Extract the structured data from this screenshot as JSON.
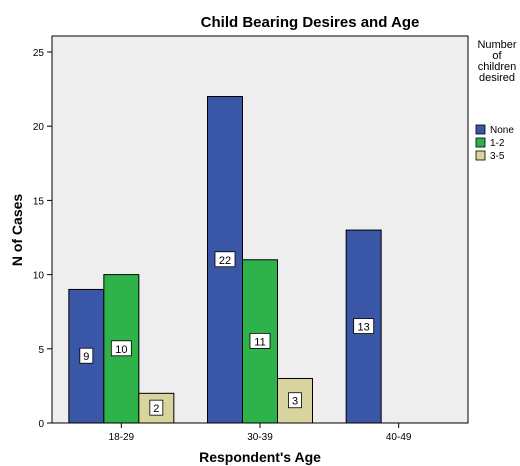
{
  "chart_data": {
    "type": "bar",
    "title": "Child Bearing Desires and Age",
    "xlabel": "Respondent's Age",
    "ylabel": "N of Cases",
    "categories": [
      "18-29",
      "30-39",
      "40-49"
    ],
    "series": [
      {
        "name": "None",
        "color": "#3a56a6",
        "values": [
          9,
          22,
          13
        ]
      },
      {
        "name": "1-2",
        "color": "#2db34a",
        "values": [
          10,
          11,
          null
        ]
      },
      {
        "name": "3-5",
        "color": "#d9d49d",
        "values": [
          2,
          3,
          null
        ]
      }
    ],
    "ylim": [
      0,
      25
    ],
    "yticks": [
      0,
      5,
      10,
      15,
      20,
      25
    ],
    "legend": {
      "title_lines": [
        "Number",
        "of",
        "children",
        "desired"
      ],
      "position": "right"
    },
    "grid": false,
    "plot_background": "#eeeeee"
  }
}
